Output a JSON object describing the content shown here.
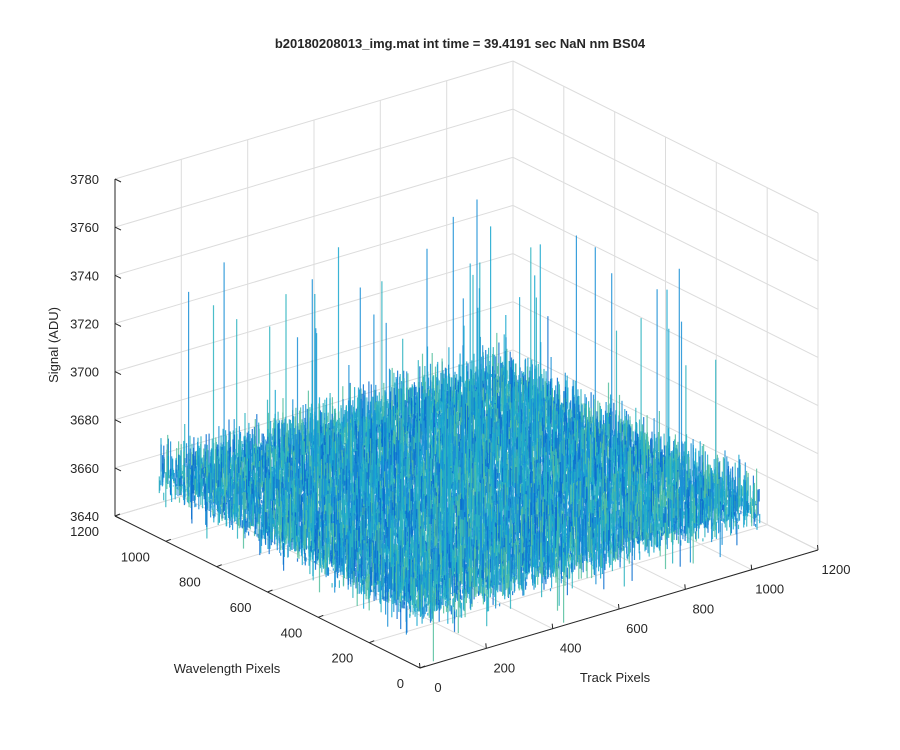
{
  "chart_data": {
    "type": "surface",
    "title": "b20180208013_img.mat int time = 39.4191 sec  NaN nm BS04",
    "xlabel": "Track Pixels",
    "ylabel": "Wavelength Pixels",
    "zlabel": "Signal (ADU)",
    "xlim": [
      0,
      1200
    ],
    "ylim": [
      0,
      1200
    ],
    "zlim": [
      3640,
      3780
    ],
    "xticks": [
      "0",
      "200",
      "400",
      "600",
      "800",
      "1000",
      "1200"
    ],
    "yticks": [
      "0",
      "200",
      "400",
      "600",
      "800",
      "1000",
      "1200"
    ],
    "zticks": [
      "3640",
      "3660",
      "3680",
      "3700",
      "3720",
      "3740",
      "3760",
      "3780"
    ],
    "surface": {
      "x_range": [
        0,
        1024
      ],
      "y_range": [
        0,
        1024
      ],
      "mean_signal": 3668,
      "noise_range": [
        3655,
        3690
      ],
      "max_spike": 3750,
      "colormap": [
        "#0a6fd0",
        "#1a8fd6",
        "#19a7cf",
        "#2bb3c0",
        "#55bf9f"
      ]
    },
    "grid": true
  }
}
